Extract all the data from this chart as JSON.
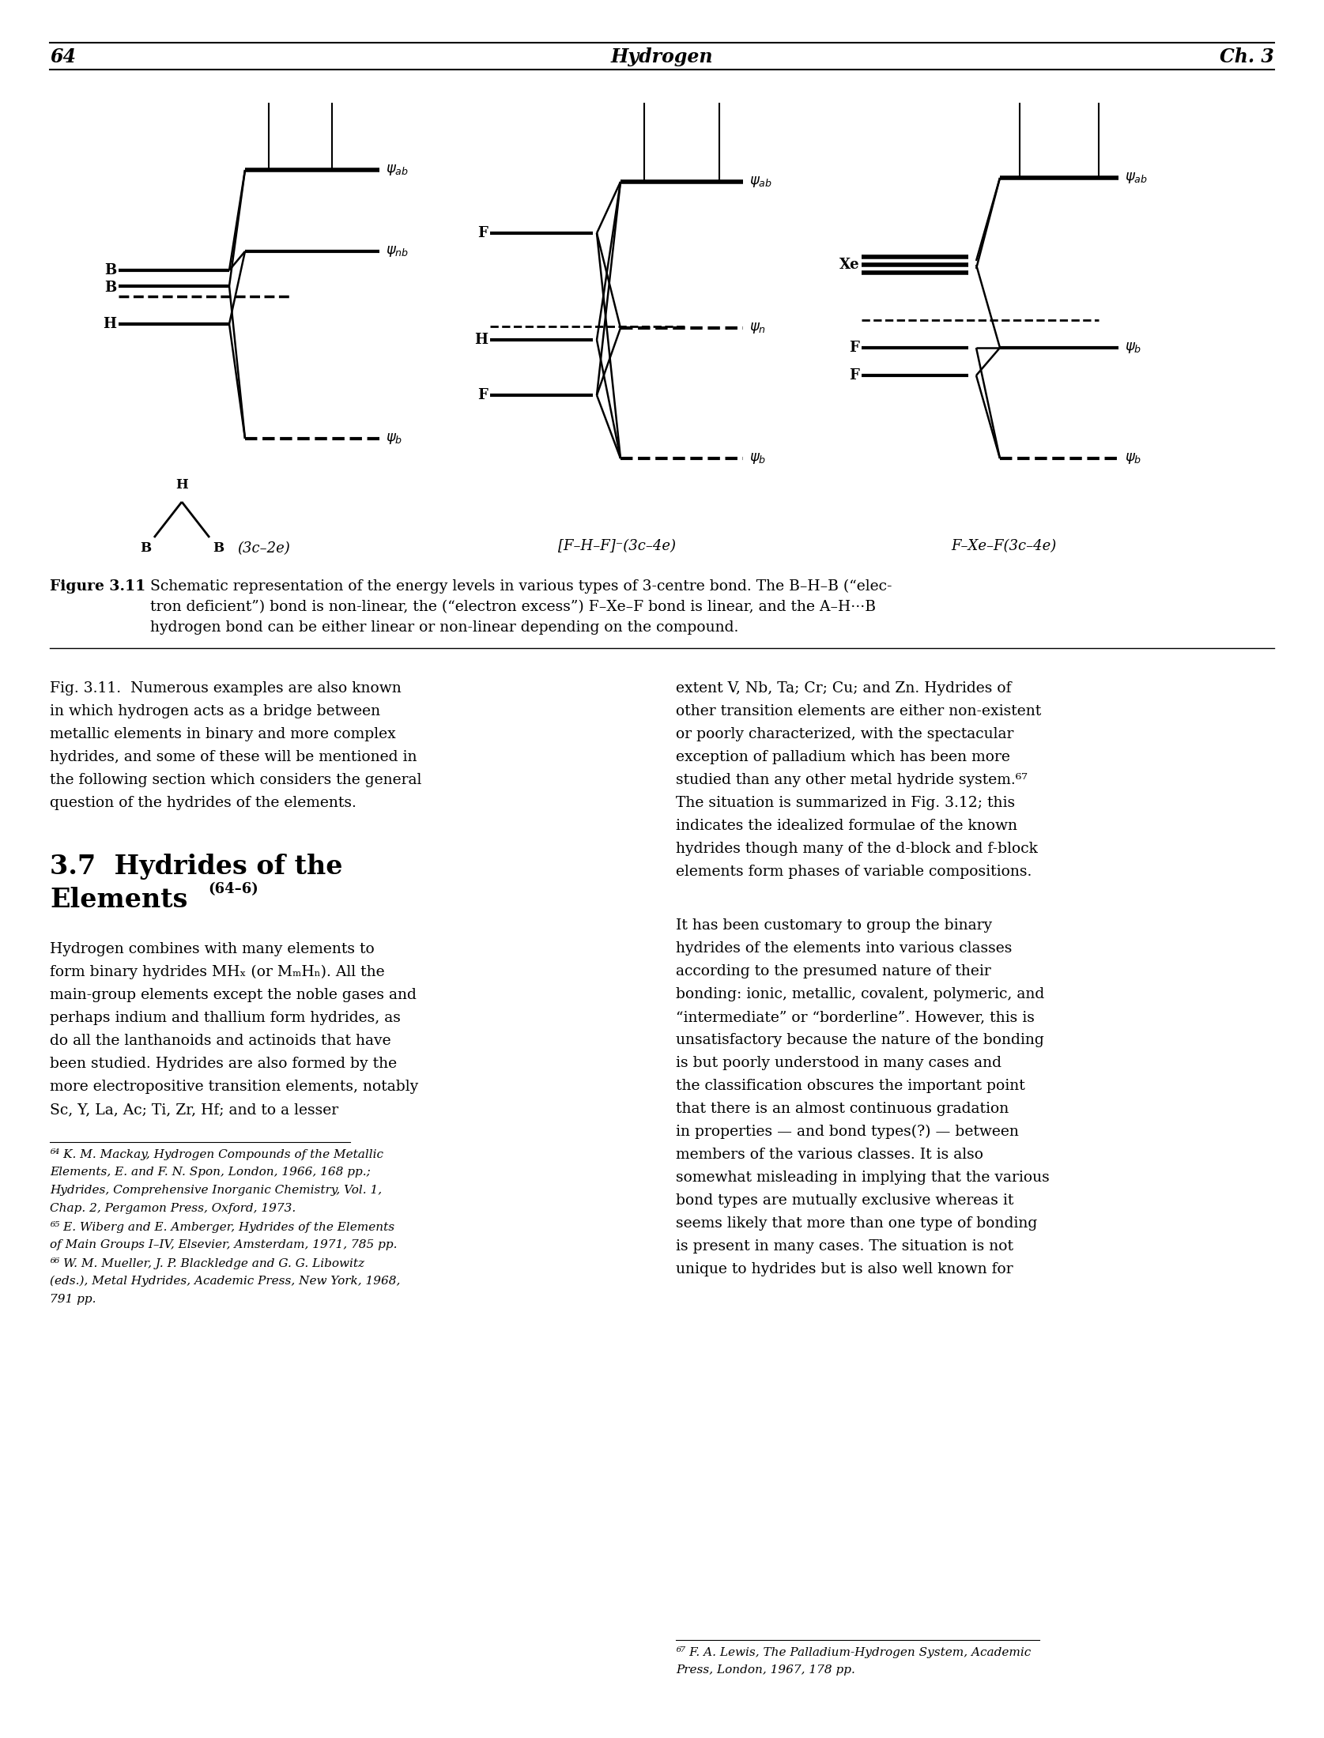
{
  "page_number": "64",
  "header_center": "Hydrogen",
  "header_right": "Ch. 3",
  "background": "#ffffff",
  "fig_caption_bold": "Figure 3.11",
  "fig_caption_line1": "  Schematic representation of the energy levels in various types of 3-centre bond. The B–H–B (“elec-",
  "fig_caption_line2": "  tron deficient”) bond is non-linear, the (“electron excess”) F–Xe–F bond is linear, and the A–H···B",
  "fig_caption_line3": "  hydrogen bond can be either linear or non-linear depending on the compound.",
  "fig311_text": "Fig. 3.11.  Numerous examples are also known\nin which hydrogen acts as a bridge between\nmetallic elements in binary and more complex\nhydrides, and some of these will be mentioned in\nthe following section which considers the general\nquestion of the hydrides of the elements.",
  "right_col_para1": [
    "extent V, Nb, Ta; Cr; Cu; and Zn. Hydrides of",
    "other transition elements are either non-existent",
    "or poorly characterized, with the spectacular",
    "exception of palladium which has been more",
    "studied than any other metal hydride system.⁶⁷",
    "The situation is summarized in Fig. 3.12; this",
    "indicates the idealized formulae of the known",
    "hydrides though many of the d-block and f-block",
    "elements form phases of variable compositions."
  ],
  "right_col_para2": [
    "It has been customary to group the binary",
    "hydrides of the elements into various classes",
    "according to the presumed nature of their",
    "bonding: ionic, metallic, covalent, polymeric, and",
    "“intermediate” or “borderline”. However, this is",
    "unsatisfactory because the nature of the bonding",
    "is but poorly understood in many cases and",
    "the classification obscures the important point",
    "that there is an almost continuous gradation",
    "in properties — and bond types(?) — between",
    "members of the various classes. It is also",
    "somewhat misleading in implying that the various",
    "bond types are mutually exclusive whereas it",
    "seems likely that more than one type of bonding",
    "is present in many cases. The situation is not",
    "unique to hydrides but is also well known for"
  ],
  "section_title_line1": "3.7  Hydrides of the",
  "section_title_line2": "Elements",
  "section_superscript": "(64–6)",
  "body_left_lines": [
    "Hydrogen combines with many elements to",
    "form binary hydrides MHₓ (or MₘHₙ). All the",
    "main-group elements except the noble gases and",
    "perhaps indium and thallium form hydrides, as",
    "do all the lanthanoids and actinoids that have",
    "been studied. Hydrides are also formed by the",
    "more electropositive transition elements, notably",
    "Sc, Y, La, Ac; Ti, Zr, Hf; and to a lesser"
  ],
  "fn_left_lines": [
    "⁶⁴ K. M. Mackay, Hydrogen Compounds of the Metallic",
    "Elements, E. and F. N. Spon, London, 1966, 168 pp.;",
    "Hydrides, Comprehensive Inorganic Chemistry, Vol. 1,",
    "Chap. 2, Pergamon Press, Oxford, 1973.",
    "⁶⁵ E. Wiberg and E. Amberger, Hydrides of the Elements",
    "of Main Groups I–IV, Elsevier, Amsterdam, 1971, 785 pp.",
    "⁶⁶ W. M. Mueller, J. P. Blackledge and G. G. Libowitz",
    "(eds.), Metal Hydrides, Academic Press, New York, 1968,",
    "791 pp."
  ],
  "fn_right_lines": [
    "⁶⁷ F. A. Lewis, The Palladium-Hydrogen System, Academic",
    "Press, London, 1967, 178 pp."
  ]
}
